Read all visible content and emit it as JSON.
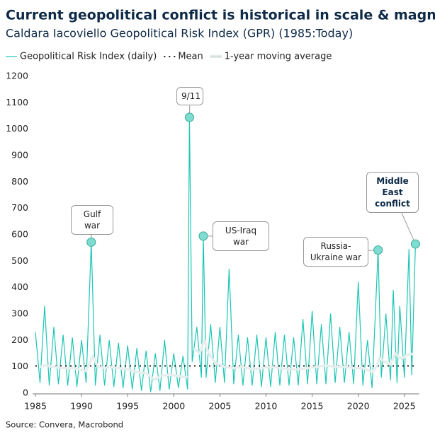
{
  "chart_data": {
    "type": "line",
    "title": "Current geopolitical conflict is historical in scale & magnitude",
    "subtitle": "Caldara Iacoviello Geopolitical Risk Index (GPR) (1985:Today)",
    "source": "Source: Convera, Macrobond",
    "xlim": [
      1985,
      2026.6
    ],
    "xticks": [
      1985,
      1990,
      1995,
      2000,
      2005,
      2010,
      2015,
      2020,
      2025
    ],
    "ylim": [
      0,
      1200
    ],
    "yticks": [
      0,
      100,
      200,
      300,
      400,
      500,
      600,
      700,
      800,
      900,
      1000,
      1100,
      1200
    ],
    "grid": false,
    "legend": "top-left",
    "series": [
      {
        "name": "Geopolitical Risk Index (daily)",
        "color": "#1cc6b4",
        "x": [
          1985.0,
          1985.5,
          1986.0,
          1986.5,
          1987.0,
          1987.5,
          1988.0,
          1988.5,
          1989.0,
          1989.5,
          1990.0,
          1990.5,
          1991.05,
          1991.5,
          1992.0,
          1992.5,
          1993.0,
          1993.5,
          1994.0,
          1994.5,
          1995.0,
          1995.5,
          1996.0,
          1996.5,
          1997.0,
          1997.5,
          1998.0,
          1998.5,
          1999.0,
          1999.5,
          2000.0,
          2000.5,
          2001.0,
          2001.5,
          2001.7,
          2002.0,
          2002.5,
          2003.0,
          2003.2,
          2003.5,
          2004.0,
          2004.5,
          2005.0,
          2005.5,
          2006.0,
          2006.5,
          2007.0,
          2007.5,
          2008.0,
          2008.5,
          2009.0,
          2009.5,
          2010.0,
          2010.5,
          2011.0,
          2011.5,
          2012.0,
          2012.5,
          2013.0,
          2013.5,
          2014.0,
          2014.5,
          2015.0,
          2015.5,
          2016.0,
          2016.5,
          2017.0,
          2017.5,
          2018.0,
          2018.5,
          2019.0,
          2019.5,
          2020.0,
          2020.5,
          2021.0,
          2021.5,
          2022.15,
          2022.5,
          2023.0,
          2023.5,
          2023.8,
          2024.2,
          2024.5,
          2025.0,
          2025.5,
          2025.8,
          2026.2
        ],
        "values": [
          230,
          40,
          330,
          30,
          250,
          35,
          220,
          30,
          210,
          25,
          200,
          40,
          572,
          30,
          220,
          30,
          200,
          25,
          190,
          20,
          180,
          15,
          170,
          10,
          160,
          5,
          150,
          10,
          200,
          15,
          150,
          20,
          140,
          15,
          1045,
          120,
          250,
          60,
          595,
          60,
          260,
          40,
          250,
          40,
          470,
          35,
          220,
          30,
          210,
          30,
          220,
          25,
          210,
          25,
          230,
          30,
          220,
          30,
          210,
          30,
          280,
          35,
          310,
          35,
          260,
          35,
          300,
          40,
          250,
          40,
          230,
          35,
          420,
          30,
          200,
          20,
          542,
          60,
          300,
          50,
          390,
          40,
          330,
          60,
          545,
          70,
          565
        ]
      },
      {
        "name": "Mean",
        "color": "#000000",
        "x": [
          1985,
          2026.2
        ],
        "values": [
          103,
          103
        ]
      },
      {
        "name": "1-year moving average",
        "color": "#e6efee",
        "x": [
          1985.5,
          1986,
          1987,
          1988,
          1989,
          1990,
          1990.5,
          1991.2,
          1991.8,
          1992.5,
          1993,
          1994,
          1995,
          1996,
          1997,
          1998,
          1998.5,
          1999.5,
          2000.5,
          2001.5,
          2001.8,
          2002.2,
          2002.8,
          2003.3,
          2003.8,
          2004.5,
          2005.5,
          2006.5,
          2007.5,
          2008.5,
          2009.5,
          2010.5,
          2011.5,
          2012.5,
          2013.5,
          2014.5,
          2015.5,
          2016.5,
          2017.5,
          2018.5,
          2019.5,
          2020.5,
          2021.5,
          2022,
          2022.3,
          2022.8,
          2023.5,
          2024,
          2024.7,
          2025.3,
          2026
        ],
        "values": [
          100,
          105,
          100,
          95,
          95,
          88,
          85,
          140,
          100,
          95,
          100,
          95,
          90,
          80,
          75,
          50,
          65,
          70,
          65,
          60,
          null,
          170,
          150,
          200,
          150,
          115,
          100,
          95,
          100,
          90,
          95,
          100,
          95,
          90,
          90,
          95,
          100,
          105,
          100,
          100,
          95,
          95,
          80,
          100,
          135,
          120,
          110,
          150,
          130,
          145,
          150
        ]
      }
    ],
    "annotations": [
      {
        "label": "Gulf war",
        "x": 1991.05,
        "y": 572
      },
      {
        "label": "9/11",
        "x": 2001.7,
        "y": 1045
      },
      {
        "label": "US-Iraq war",
        "x": 2003.2,
        "y": 595
      },
      {
        "label": "Russia-Ukraine war",
        "x": 2022.15,
        "y": 542
      },
      {
        "label": "Middle East conflict",
        "x": 2026.2,
        "y": 565
      }
    ]
  }
}
